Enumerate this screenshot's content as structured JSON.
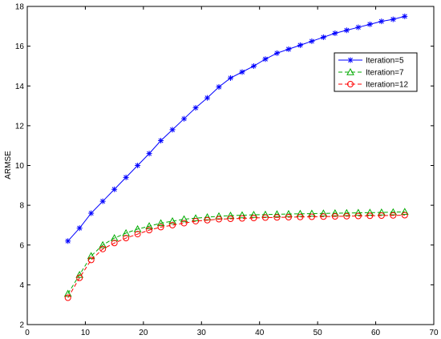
{
  "chart_data": {
    "type": "line",
    "title": "",
    "xlabel": "",
    "ylabel": "ARMSE",
    "xlim": [
      0,
      70
    ],
    "ylim": [
      2,
      18
    ],
    "xticks": [
      0,
      10,
      20,
      30,
      40,
      50,
      60,
      70
    ],
    "yticks": [
      2,
      4,
      6,
      8,
      10,
      12,
      14,
      16,
      18
    ],
    "grid": false,
    "legend_position": "top-right",
    "x": [
      7,
      9,
      11,
      13,
      15,
      17,
      19,
      21,
      23,
      25,
      27,
      29,
      31,
      33,
      35,
      37,
      39,
      41,
      43,
      45,
      47,
      49,
      51,
      53,
      55,
      57,
      59,
      61,
      63,
      65
    ],
    "series": [
      {
        "name": "Iteration=5",
        "color": "#0000ff",
        "line_style": "solid",
        "marker": "asterisk",
        "values": [
          6.2,
          6.85,
          7.6,
          8.2,
          8.8,
          9.4,
          10.0,
          10.6,
          11.25,
          11.8,
          12.35,
          12.9,
          13.4,
          13.95,
          14.4,
          14.7,
          15.0,
          15.35,
          15.65,
          15.85,
          16.05,
          16.25,
          16.45,
          16.65,
          16.8,
          16.95,
          17.1,
          17.25,
          17.35,
          17.5
        ]
      },
      {
        "name": "Iteration=7",
        "color": "#00aa00",
        "line_style": "dashed",
        "marker": "triangle",
        "values": [
          3.55,
          4.5,
          5.45,
          6.0,
          6.35,
          6.6,
          6.8,
          6.95,
          7.1,
          7.2,
          7.3,
          7.35,
          7.4,
          7.45,
          7.48,
          7.5,
          7.52,
          7.53,
          7.55,
          7.56,
          7.57,
          7.58,
          7.59,
          7.6,
          7.61,
          7.62,
          7.63,
          7.64,
          7.65,
          7.67
        ]
      },
      {
        "name": "Iteration=12",
        "color": "#ff0000",
        "line_style": "dashed",
        "marker": "circle",
        "values": [
          3.35,
          4.35,
          5.25,
          5.8,
          6.1,
          6.35,
          6.55,
          6.75,
          6.9,
          7.0,
          7.1,
          7.2,
          7.25,
          7.3,
          7.32,
          7.34,
          7.36,
          7.38,
          7.39,
          7.4,
          7.41,
          7.42,
          7.43,
          7.44,
          7.45,
          7.46,
          7.47,
          7.48,
          7.49,
          7.5
        ]
      }
    ]
  }
}
